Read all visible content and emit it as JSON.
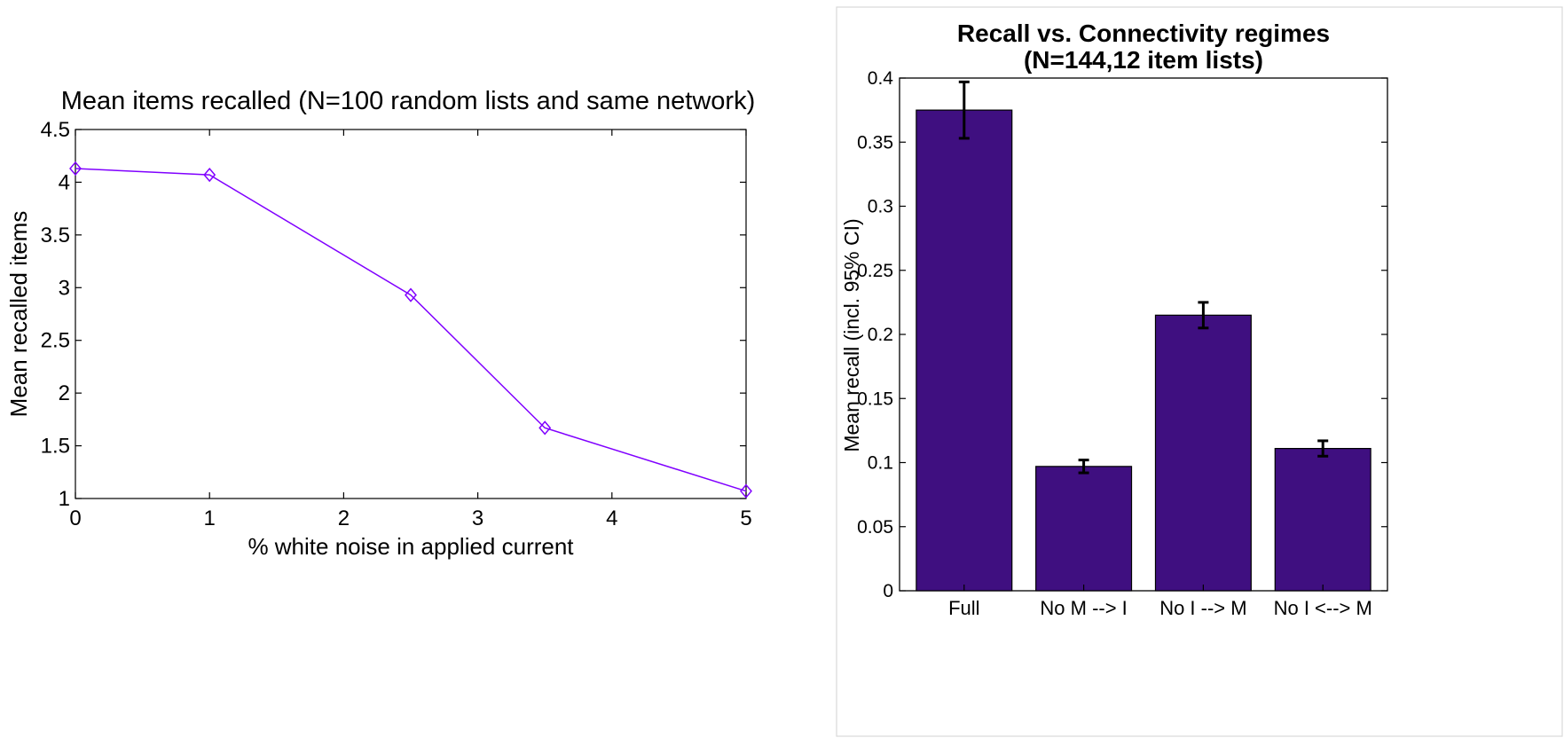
{
  "chart_data": [
    {
      "type": "line",
      "title": "Mean items recalled (N=100 random lists and same network)",
      "xlabel": "% white noise in applied current",
      "ylabel": "Mean recalled items",
      "xlim": [
        0,
        5
      ],
      "ylim": [
        1,
        4.5
      ],
      "xticks": [
        0,
        1,
        2,
        3,
        4,
        5
      ],
      "yticks": [
        1,
        1.5,
        2,
        2.5,
        3,
        3.5,
        4,
        4.5
      ],
      "xtick_labels": [
        "0",
        "1",
        "2",
        "3",
        "4",
        "5"
      ],
      "ytick_labels": [
        "1",
        "1.5",
        "2",
        "2.5",
        "3",
        "3.5",
        "4",
        "4.5"
      ],
      "grid": false,
      "marker": "diamond",
      "color": "#8000ff",
      "series": [
        {
          "x": [
            0,
            1,
            2.5,
            3.5,
            5
          ],
          "y": [
            4.13,
            4.07,
            2.93,
            1.67,
            1.07
          ]
        }
      ]
    },
    {
      "type": "bar",
      "title": "Recall vs. Connectivity regimes",
      "subtitle": "(N=144,12 item lists)",
      "xlabel": "",
      "ylabel": "Mean recall (incl. 95% CI)",
      "ylim": [
        0,
        0.4
      ],
      "yticks": [
        0,
        0.05,
        0.1,
        0.15,
        0.2,
        0.25,
        0.3,
        0.35,
        0.4
      ],
      "ytick_labels": [
        "0",
        "0.05",
        "0.1",
        "0.15",
        "0.2",
        "0.25",
        "0.3",
        "0.35",
        "0.4"
      ],
      "grid": false,
      "color": "#3f0f80",
      "categories": [
        "Full",
        "No M --> I",
        "No I --> M",
        "No I <--> M"
      ],
      "values": [
        0.375,
        0.097,
        0.215,
        0.111
      ],
      "error_low": [
        0.353,
        0.092,
        0.205,
        0.105
      ],
      "error_high": [
        0.397,
        0.102,
        0.225,
        0.117
      ]
    }
  ]
}
